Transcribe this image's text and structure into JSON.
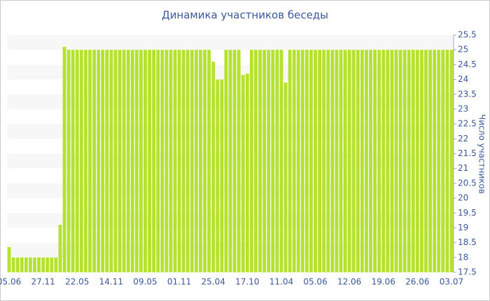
{
  "chart_data": {
    "type": "bar",
    "title": "Динамика участников беседы",
    "y_label": "Число участников",
    "categories": [
      "05.06",
      null,
      null,
      null,
      null,
      null,
      null,
      null,
      "27.11",
      null,
      null,
      null,
      null,
      null,
      null,
      null,
      "22.05",
      null,
      null,
      null,
      null,
      null,
      null,
      null,
      "14.11",
      null,
      null,
      null,
      null,
      null,
      null,
      null,
      "09.05",
      null,
      null,
      null,
      null,
      null,
      null,
      null,
      "01.11",
      null,
      null,
      null,
      null,
      null,
      null,
      null,
      "25.04",
      null,
      null,
      null,
      null,
      null,
      null,
      null,
      "17.10",
      null,
      null,
      null,
      null,
      null,
      null,
      null,
      "11.04",
      null,
      null,
      null,
      null,
      null,
      null,
      null,
      "05.06",
      null,
      null,
      null,
      null,
      null,
      null,
      null,
      "12.06",
      null,
      null,
      null,
      null,
      null,
      null,
      null,
      "19.06",
      null,
      null,
      null,
      null,
      null,
      null,
      null,
      "26.06",
      null,
      null,
      null,
      null,
      null,
      null,
      null,
      "03.07"
    ],
    "values": [
      18.35,
      18,
      18,
      18,
      18,
      18,
      18,
      18,
      18,
      18,
      18,
      18,
      19.1,
      25.1,
      25,
      25,
      25,
      25,
      25,
      25,
      25,
      25,
      25,
      25,
      25,
      25,
      25,
      25,
      25,
      25,
      25,
      25,
      25,
      25,
      25,
      25,
      25,
      25,
      25,
      25,
      25,
      25,
      25,
      25,
      25,
      25,
      25,
      25,
      24.6,
      24,
      24,
      25,
      25,
      25,
      25,
      24.15,
      24.2,
      25,
      25,
      25,
      25,
      25,
      25,
      25,
      25,
      23.9,
      25,
      25,
      25,
      25,
      25,
      25,
      25,
      25,
      25,
      25,
      25,
      25,
      25,
      25,
      25,
      25,
      25,
      25,
      25,
      25,
      25,
      25,
      25,
      25,
      25,
      25,
      25,
      25,
      25,
      25,
      25,
      25,
      25,
      25,
      25,
      25,
      25,
      25,
      25
    ],
    "color": "#b5e22e",
    "ylim": [
      17.5,
      25.5
    ],
    "yticks": [
      17.5,
      18,
      18.5,
      19,
      19.5,
      20,
      20.5,
      21,
      21.5,
      22,
      22.5,
      23,
      23.5,
      24,
      24.5,
      25,
      25.5
    ],
    "grid": true
  }
}
